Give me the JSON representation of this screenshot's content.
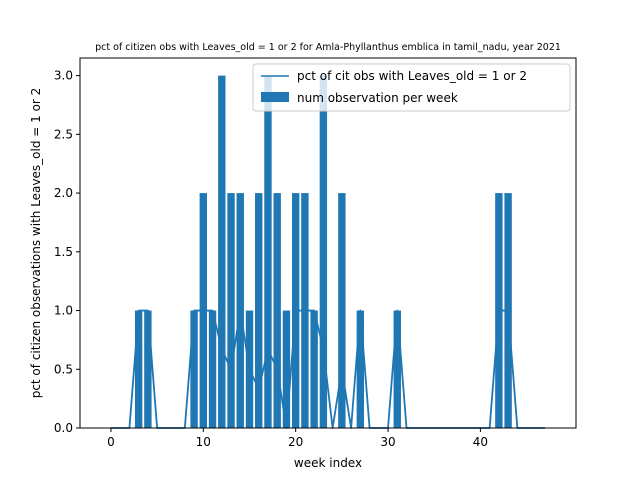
{
  "chart_data": {
    "type": "bar",
    "title": "pct of citizen obs with Leaves_old = 1 or 2 for Amla-Phyllanthus emblica in tamil_nadu, year 2021",
    "xlabel": "week index",
    "ylabel": "pct of citizen observations with Leaves_old = 1 or 2",
    "xlim": [
      -3.35,
      50.35
    ],
    "ylim": [
      0,
      3.15
    ],
    "xticks": [
      0,
      10,
      20,
      30,
      40
    ],
    "yticks": [
      0.0,
      0.5,
      1.0,
      1.5,
      2.0,
      2.5,
      3.0
    ],
    "ytick_labels": [
      "0.0",
      "0.5",
      "1.0",
      "1.5",
      "2.0",
      "2.5",
      "3.0"
    ],
    "grid": false,
    "legend_position": "top-right",
    "color": "#1f77b4",
    "series": [
      {
        "name": "pct of cit obs with Leaves_old = 1 or 2",
        "kind": "line",
        "x": [
          0,
          1,
          2,
          3,
          4,
          5,
          6,
          7,
          8,
          9,
          10,
          11,
          12,
          13,
          14,
          15,
          16,
          17,
          18,
          19,
          20,
          21,
          22,
          23,
          24,
          25,
          26,
          27,
          28,
          29,
          30,
          31,
          32,
          33,
          34,
          35,
          36,
          37,
          38,
          39,
          40,
          41,
          42,
          43,
          44,
          45,
          46,
          47
        ],
        "y": [
          0,
          0,
          0,
          1,
          1,
          0,
          0,
          0,
          0,
          1,
          1,
          1,
          0.67,
          0.5,
          1,
          0.5,
          0.33,
          0.67,
          0.5,
          0,
          1,
          1,
          1,
          0.67,
          0,
          0.5,
          0,
          1,
          0,
          0,
          0,
          1,
          0,
          0,
          0,
          0,
          0,
          0,
          0,
          0,
          0,
          0,
          1,
          1,
          0,
          0,
          0,
          0
        ]
      },
      {
        "name": "num observation per week",
        "kind": "bar",
        "x": [
          3,
          4,
          9,
          10,
          11,
          12,
          13,
          14,
          15,
          16,
          17,
          18,
          19,
          20,
          21,
          22,
          23,
          25,
          27,
          31,
          42,
          43
        ],
        "y": [
          1,
          1,
          1,
          2,
          1,
          3,
          2,
          2,
          1,
          2,
          3,
          2,
          1,
          2,
          2,
          1,
          3,
          2,
          1,
          1,
          2,
          2
        ]
      }
    ]
  }
}
